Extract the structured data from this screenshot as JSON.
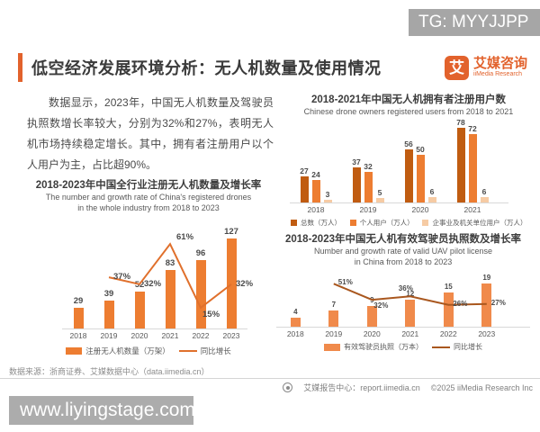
{
  "watermark_top": "TG: MYYJJPP",
  "watermark_bottom": "www.liyingstage.com",
  "header": {
    "title": "低空经济发展环境分析：无人机数量及使用情况",
    "logo_char": "艾",
    "logo_name": "艾媒咨询",
    "logo_sub": "iiMedia Research"
  },
  "intro_paragraph": "数据显示，2023年，中国无人机数量及驾驶员执照数增长率较大，分别为32%和27%，表明无人机市场持续稳定增长。其中，拥有者注册用户以个人用户为主，占比超90%。",
  "colors": {
    "accent": "#E2622C",
    "bar_orange": "#ED7D31",
    "bar_orange_light": "#F08A4B",
    "bar_dark": "#C05C11",
    "bar_light": "#F6CBA4",
    "line_orange": "#E0702C",
    "line_dark": "#A9571E",
    "axis_gray": "#D8D8D8"
  },
  "chart_data": [
    {
      "id": "registered-drones",
      "type": "bar+line",
      "title": "2018-2023年中国全行业注册无人机数量及增长率",
      "subtitle_lines": [
        "The number and growth rate of China's registered drones",
        "in the whole industry from 2018 to 2023"
      ],
      "categories": [
        "2018",
        "2019",
        "2020",
        "2021",
        "2022",
        "2023"
      ],
      "series": [
        {
          "name": "注册无人机数量（万架）",
          "type": "bar",
          "values": [
            29,
            39,
            52,
            83,
            96,
            127
          ]
        },
        {
          "name": "同比增长",
          "type": "line",
          "values": [
            null,
            37,
            32,
            61,
            15,
            32
          ],
          "labels": [
            "",
            "37%",
            "32%",
            "61%",
            "15%",
            "32%"
          ],
          "label_sides": [
            "",
            "right",
            "right",
            "above-right",
            "below-right",
            "right"
          ]
        }
      ],
      "ylim_bars": [
        0,
        127
      ],
      "ylim_line_pct": [
        0,
        65
      ],
      "legend_position": "bottom"
    },
    {
      "id": "owner-registered-users",
      "type": "grouped-bar",
      "title": "2018-2021年中国无人机拥有者注册用户数",
      "subtitle_lines": [
        "Chinese drone owners registered users from 2018 to 2021"
      ],
      "categories": [
        "2018",
        "2019",
        "2020",
        "2021"
      ],
      "series": [
        {
          "name": "总数（万人）",
          "values": [
            27,
            37,
            56,
            78
          ]
        },
        {
          "name": "个人用户（万人）",
          "values": [
            24,
            32,
            50,
            72
          ]
        },
        {
          "name": "企事业及机关单位用户（万人）",
          "values": [
            3,
            5,
            6,
            6
          ]
        }
      ],
      "ylim_bars": [
        0,
        80
      ],
      "legend_position": "bottom"
    },
    {
      "id": "uav-pilot-license",
      "type": "bar+line",
      "title": "2018-2023年中国无人机有效驾驶员执照数及增长率",
      "subtitle_lines": [
        "Number and growth rate of valid UAV pilot license",
        "in China  from 2018 to 2023"
      ],
      "categories": [
        "2018",
        "2019",
        "2020",
        "2021",
        "2022",
        "2023"
      ],
      "series": [
        {
          "name": "有效驾驶员执照（万本）",
          "type": "bar",
          "values": [
            4,
            7,
            9,
            12,
            15,
            19
          ]
        },
        {
          "name": "同比增长",
          "type": "line",
          "values": [
            null,
            51,
            32,
            36,
            26,
            27
          ],
          "labels": [
            "",
            "51%",
            "32%",
            "36%",
            "26%",
            "27%"
          ],
          "label_sides": [
            "",
            "right",
            "below-right",
            "above",
            "right",
            "right"
          ]
        }
      ],
      "ylim_bars": [
        0,
        19
      ],
      "ylim_line_pct": [
        0,
        62
      ],
      "legend_position": "bottom"
    }
  ],
  "footer": {
    "source": "数据来源：浙商证券、艾媒数据中心（data.iimedia.cn）",
    "report_center": "艾媒报告中心：report.iimedia.cn",
    "copyright": "©2025  iiMedia Research Inc"
  }
}
